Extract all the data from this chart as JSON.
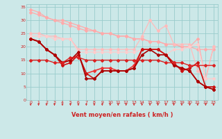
{
  "xlabel": "Vent moyen/en rafales ( km/h )",
  "xlim": [
    -0.5,
    23.5
  ],
  "ylim": [
    0,
    36
  ],
  "yticks": [
    0,
    5,
    10,
    15,
    20,
    25,
    30,
    35
  ],
  "xticks": [
    0,
    1,
    2,
    3,
    4,
    5,
    6,
    7,
    8,
    9,
    10,
    11,
    12,
    13,
    14,
    15,
    16,
    17,
    18,
    19,
    20,
    21,
    22,
    23
  ],
  "bg_color": "#cce8e8",
  "grid_color": "#99cccc",
  "series": [
    {
      "color": "#ffaaaa",
      "marker": "D",
      "markersize": 2,
      "linewidth": 0.9,
      "y": [
        34,
        33,
        31,
        30,
        29,
        28,
        27,
        26,
        26,
        25,
        25,
        24,
        24,
        23,
        23,
        22,
        22,
        21,
        21,
        20,
        20,
        19,
        19,
        19
      ]
    },
    {
      "color": "#ffaaaa",
      "marker": "D",
      "markersize": 2,
      "linewidth": 0.9,
      "y": [
        33,
        32,
        31,
        30,
        30,
        29,
        28,
        27,
        26,
        25,
        25,
        24,
        24,
        23,
        23,
        22,
        22,
        21,
        21,
        20,
        20,
        23,
        8,
        20
      ]
    },
    {
      "color": "#ffbbbb",
      "marker": "D",
      "markersize": 2,
      "linewidth": 0.9,
      "y": [
        25,
        25,
        24,
        24,
        23,
        23,
        19,
        19,
        19,
        19,
        19,
        19,
        19,
        19,
        24,
        30,
        26,
        28,
        21,
        21,
        21,
        11,
        8,
        20
      ]
    },
    {
      "color": "#ffcccc",
      "marker": "D",
      "markersize": 2,
      "linewidth": 0.9,
      "y": [
        24,
        24,
        24,
        23,
        23,
        23,
        18,
        18,
        18,
        18,
        18,
        18,
        18,
        18,
        19,
        19,
        19,
        17,
        19,
        19,
        20,
        21,
        8,
        8
      ]
    },
    {
      "color": "#ee3333",
      "marker": "D",
      "markersize": 2,
      "linewidth": 1.2,
      "y": [
        23,
        22,
        19,
        17,
        14,
        15,
        17,
        10,
        11,
        12,
        12,
        11,
        11,
        13,
        19,
        19,
        19,
        17,
        13,
        12,
        11,
        7,
        5,
        4
      ]
    },
    {
      "color": "#cc1111",
      "marker": "D",
      "markersize": 2,
      "linewidth": 1.2,
      "y": [
        23,
        22,
        19,
        17,
        13,
        14,
        17,
        10,
        8,
        11,
        11,
        11,
        11,
        12,
        19,
        19,
        19,
        17,
        14,
        11,
        12,
        14,
        5,
        5
      ]
    },
    {
      "color": "#aa0000",
      "marker": "D",
      "markersize": 2,
      "linewidth": 1.2,
      "y": [
        23,
        22,
        19,
        17,
        14,
        15,
        18,
        8,
        8,
        11,
        11,
        11,
        11,
        12,
        17,
        19,
        17,
        17,
        13,
        12,
        11,
        7,
        5,
        4
      ]
    },
    {
      "color": "#dd2222",
      "marker": "D",
      "markersize": 2,
      "linewidth": 1.0,
      "y": [
        15,
        15,
        15,
        14,
        14,
        16,
        16,
        15,
        15,
        15,
        15,
        15,
        15,
        15,
        15,
        15,
        15,
        14,
        14,
        14,
        13,
        13,
        13,
        13
      ]
    }
  ],
  "arrow_color": "#cc2222",
  "font_color": "#cc2222"
}
